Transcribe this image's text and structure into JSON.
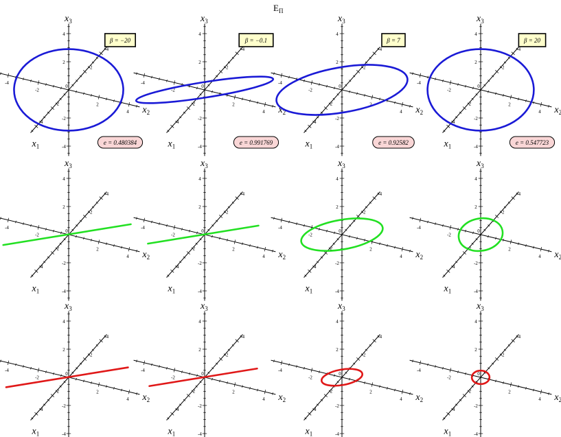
{
  "title": "E",
  "title_subscript": "Π",
  "axis_labels": {
    "x1": "x",
    "x1_sub": "1",
    "x2": "x",
    "x2_sub": "2",
    "x3": "x",
    "x3_sub": "3"
  },
  "tick_values": [
    "-4",
    "-2",
    "2",
    "4"
  ],
  "origin_label": "0",
  "colors": {
    "row_1": "#1a1ad6",
    "row_2": "#22e022",
    "row_3": "#e01818",
    "beta_box": "#ffffcc",
    "ecc_box": "#f9d6d6"
  },
  "betas": [
    "β = −20",
    "β = −0.1",
    "β = 7",
    "β = 20"
  ],
  "eccentricities": [
    "e = 0.480384",
    "e = 0.991769",
    "e = 0.92582",
    "e = 0.547723"
  ],
  "panels": [
    {
      "row": 1,
      "col": 1,
      "color": "row_1",
      "shape": "ellipse",
      "semi_major": 3.7,
      "semi_minor": 2.9,
      "tilt_deg": 0
    },
    {
      "row": 1,
      "col": 2,
      "color": "row_1",
      "shape": "ellipse",
      "semi_major": 4.7,
      "semi_minor": 0.55,
      "tilt_deg": 9
    },
    {
      "row": 1,
      "col": 2.5,
      "color": "row_1",
      "shape": "ellipse",
      "semi_major": 4.5,
      "semi_minor": 1.6,
      "tilt_deg": 10
    },
    {
      "row": 1,
      "col": 4,
      "color": "row_1",
      "shape": "ellipse",
      "semi_major": 3.6,
      "semi_minor": 2.9,
      "tilt_deg": 0
    },
    {
      "row": 2,
      "col": 1,
      "color": "row_2",
      "shape": "line",
      "semi_major": 4.5,
      "semi_minor": 0,
      "tilt_deg": 10
    },
    {
      "row": 2,
      "col": 2,
      "color": "row_2",
      "shape": "line",
      "semi_major": 3.9,
      "semi_minor": 0,
      "tilt_deg": 10
    },
    {
      "row": 2,
      "col": 3,
      "color": "row_2",
      "shape": "ellipse",
      "semi_major": 2.8,
      "semi_minor": 1.05,
      "tilt_deg": 10
    },
    {
      "row": 2,
      "col": 4,
      "color": "row_2",
      "shape": "ellipse",
      "semi_major": 1.5,
      "semi_minor": 1.15,
      "tilt_deg": 10
    },
    {
      "row": 3,
      "col": 1,
      "color": "row_3",
      "shape": "line",
      "semi_major": 4.3,
      "semi_minor": 0,
      "tilt_deg": 10
    },
    {
      "row": 3,
      "col": 2,
      "color": "row_3",
      "shape": "line",
      "semi_major": 3.8,
      "semi_minor": 0,
      "tilt_deg": 10
    },
    {
      "row": 3,
      "col": 3,
      "color": "row_3",
      "shape": "ellipse",
      "semi_major": 1.4,
      "semi_minor": 0.55,
      "tilt_deg": 10
    },
    {
      "row": 3,
      "col": 4,
      "color": "row_3",
      "shape": "ellipse",
      "semi_major": 0.6,
      "semi_minor": 0.48,
      "tilt_deg": 0
    }
  ]
}
